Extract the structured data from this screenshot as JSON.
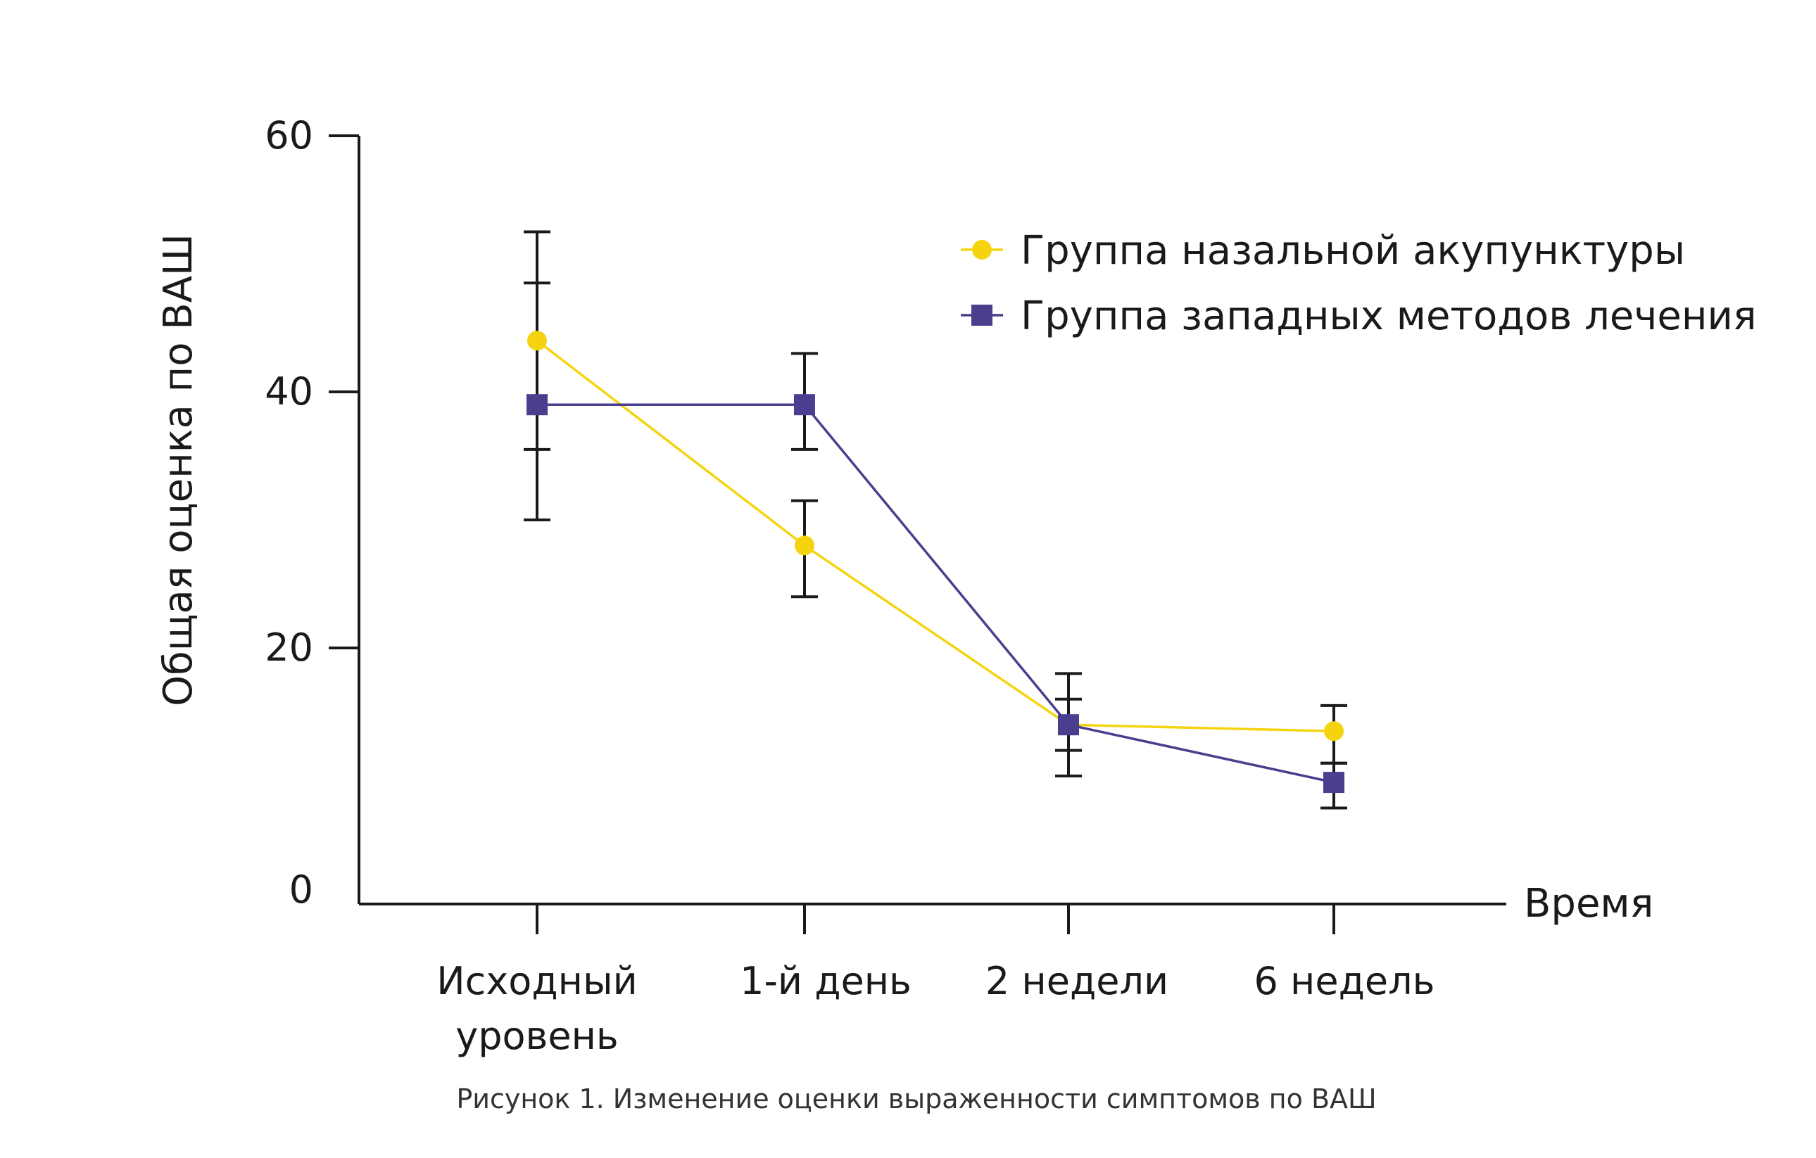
{
  "chart_data": {
    "type": "line",
    "caption": "Рисунок 1. Изменение оценки выраженности симптомов по ВАШ",
    "ylabel": "Общая оценка по ВАШ",
    "xlabel": "Время",
    "ylim": [
      0,
      60
    ],
    "yticks": [
      "0",
      "20",
      "40",
      "60"
    ],
    "categories": [
      [
        "Исходный",
        "уровень"
      ],
      [
        "1-й день"
      ],
      [
        "2 недели"
      ],
      [
        "6 недель"
      ]
    ],
    "legend_position": "top-right",
    "series": [
      {
        "name": "Группа назальной акупунктуры",
        "color": "#f5d40f",
        "marker": "circle",
        "values": [
          44,
          28,
          14,
          13.5
        ],
        "error": [
          [
            30,
            52.5
          ],
          [
            24,
            31.5
          ],
          [
            10,
            16
          ],
          [
            11,
            15.5
          ]
        ]
      },
      {
        "name": "Группа западных методов лечения",
        "color": "#4a3f8f",
        "marker": "square",
        "values": [
          39,
          39,
          14,
          9.5
        ],
        "error": [
          [
            35.5,
            48.5
          ],
          [
            35.5,
            43
          ],
          [
            12,
            18
          ],
          [
            7.5,
            11
          ]
        ]
      }
    ]
  }
}
